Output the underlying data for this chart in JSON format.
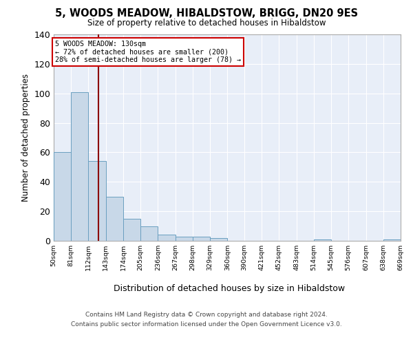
{
  "title": "5, WOODS MEADOW, HIBALDSTOW, BRIGG, DN20 9ES",
  "subtitle": "Size of property relative to detached houses in Hibaldstow",
  "xlabel": "Distribution of detached houses by size in Hibaldstow",
  "ylabel": "Number of detached properties",
  "bar_edges": [
    50,
    81,
    112,
    143,
    174,
    205,
    236,
    267,
    298,
    329,
    360,
    390,
    421,
    452,
    483,
    514,
    545,
    576,
    607,
    638,
    669
  ],
  "bar_heights": [
    60,
    101,
    54,
    30,
    15,
    10,
    4,
    3,
    3,
    2,
    0,
    0,
    0,
    0,
    0,
    1,
    0,
    0,
    0,
    1
  ],
  "bar_color": "#c8d8e8",
  "bar_edge_color": "#6a9fc0",
  "bg_color": "#e8eef8",
  "grid_color": "#ffffff",
  "vline_color": "#8b0000",
  "vline_x": 130,
  "annotation_text": "5 WOODS MEADOW: 130sqm\n← 72% of detached houses are smaller (200)\n28% of semi-detached houses are larger (78) →",
  "annotation_box_color": "#ffffff",
  "annotation_box_edge": "#cc0000",
  "ylim": [
    0,
    140
  ],
  "yticks": [
    0,
    20,
    40,
    60,
    80,
    100,
    120,
    140
  ],
  "footer1": "Contains HM Land Registry data © Crown copyright and database right 2024.",
  "footer2": "Contains public sector information licensed under the Open Government Licence v3.0."
}
